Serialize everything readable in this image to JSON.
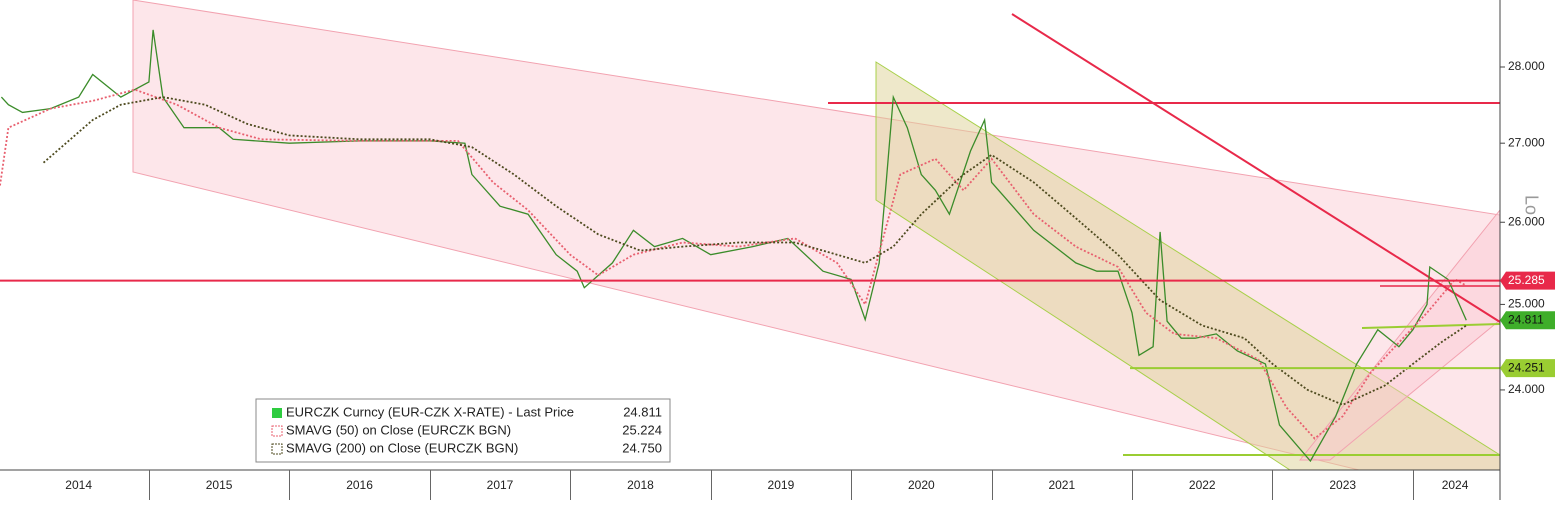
{
  "chart_data": {
    "type": "line",
    "log_scale": true,
    "vertical_label": "Lo",
    "xlim": [
      2013.94,
      2024.62
    ],
    "xticks": [
      {
        "value": 2014.5,
        "label": "2014"
      },
      {
        "value": 2015.5,
        "label": "2015"
      },
      {
        "value": 2016.5,
        "label": "2016"
      },
      {
        "value": 2017.5,
        "label": "2017"
      },
      {
        "value": 2018.5,
        "label": "2018"
      },
      {
        "value": 2019.5,
        "label": "2019"
      },
      {
        "value": 2020.5,
        "label": "2020"
      },
      {
        "value": 2021.5,
        "label": "2021"
      },
      {
        "value": 2022.5,
        "label": "2022"
      },
      {
        "value": 2023.5,
        "label": "2023"
      },
      {
        "value": 2024.3,
        "label": "2024"
      }
    ],
    "ylim": [
      23.1,
      28.91
    ],
    "yticks": [
      {
        "value": 24,
        "label": "24.000"
      },
      {
        "value": 25,
        "label": "25.000"
      },
      {
        "value": 26,
        "label": "26.000"
      },
      {
        "value": 27,
        "label": "27.000"
      },
      {
        "value": 28,
        "label": "28.000"
      }
    ],
    "series": [
      {
        "name": "EURCZK Curncy (EUR-CZK X-RATE) - Last Price",
        "color": "#3b8c2a",
        "style": "solid",
        "last": 24.811,
        "x": [
          2013.95,
          2014.0,
          2014.1,
          2014.3,
          2014.5,
          2014.6,
          2014.8,
          2015.0,
          2015.03,
          2015.1,
          2015.25,
          2015.5,
          2015.6,
          2016.0,
          2016.5,
          2017.0,
          2017.25,
          2017.3,
          2017.5,
          2017.7,
          2017.9,
          2018.05,
          2018.1,
          2018.3,
          2018.45,
          2018.6,
          2018.8,
          2019.0,
          2019.3,
          2019.55,
          2019.8,
          2020.0,
          2020.1,
          2020.2,
          2020.25,
          2020.3,
          2020.4,
          2020.5,
          2020.6,
          2020.7,
          2020.85,
          2020.95,
          2021.0,
          2021.15,
          2021.3,
          2021.45,
          2021.6,
          2021.75,
          2021.9,
          2022.0,
          2022.05,
          2022.15,
          2022.2,
          2022.25,
          2022.35,
          2022.45,
          2022.6,
          2022.75,
          2022.95,
          2023.05,
          2023.27,
          2023.45,
          2023.6,
          2023.75,
          2023.9,
          2024.0,
          2024.1,
          2024.12,
          2024.25,
          2024.33,
          2024.38
        ],
        "values": [
          27.6,
          27.5,
          27.4,
          27.45,
          27.6,
          27.9,
          27.6,
          27.8,
          28.5,
          27.6,
          27.2,
          27.2,
          27.05,
          27.0,
          27.03,
          27.03,
          27.0,
          26.6,
          26.2,
          26.1,
          25.6,
          25.4,
          25.2,
          25.5,
          25.9,
          25.7,
          25.8,
          25.6,
          25.7,
          25.8,
          25.4,
          25.3,
          24.82,
          25.5,
          26.5,
          27.6,
          27.2,
          26.6,
          26.4,
          26.1,
          26.9,
          27.3,
          26.5,
          26.2,
          25.9,
          25.7,
          25.5,
          25.4,
          25.4,
          24.9,
          24.4,
          24.5,
          25.88,
          24.8,
          24.6,
          24.6,
          24.65,
          24.45,
          24.3,
          23.6,
          23.2,
          23.7,
          24.3,
          24.7,
          24.5,
          24.7,
          25.0,
          25.45,
          25.3,
          25.0,
          24.811
        ]
      },
      {
        "name": "SMAVG (50)  on Close (EURCZK BGN)",
        "color": "#e8606f",
        "style": "dotted",
        "last": 25.224,
        "x": [
          2013.94,
          2014.0,
          2014.3,
          2014.6,
          2014.9,
          2015.2,
          2015.5,
          2015.8,
          2016.5,
          2017.2,
          2017.45,
          2017.7,
          2018.0,
          2018.2,
          2018.45,
          2018.8,
          2019.2,
          2019.6,
          2019.9,
          2020.1,
          2020.35,
          2020.6,
          2020.8,
          2021.0,
          2021.3,
          2021.6,
          2021.9,
          2022.1,
          2022.3,
          2022.6,
          2022.9,
          2023.1,
          2023.3,
          2023.5,
          2023.7,
          2023.9,
          2024.1,
          2024.3,
          2024.38
        ],
        "values": [
          26.46,
          27.2,
          27.45,
          27.55,
          27.7,
          27.5,
          27.2,
          27.05,
          27.03,
          27.03,
          26.5,
          26.15,
          25.6,
          25.35,
          25.6,
          25.75,
          25.7,
          25.8,
          25.5,
          25.0,
          26.6,
          26.8,
          26.4,
          26.8,
          26.1,
          25.7,
          25.45,
          24.9,
          24.65,
          24.6,
          24.35,
          23.8,
          23.45,
          23.7,
          24.2,
          24.55,
          24.9,
          25.3,
          25.224
        ]
      },
      {
        "name": "SMAVG (200)  on Close (EURCZK BGN)",
        "color": "#4d4a1e",
        "style": "dotted",
        "last": {
          "value": 24.75,
          "label": "24.750"
        },
        "x": [
          2014.25,
          2014.6,
          2014.8,
          2015.1,
          2015.4,
          2015.7,
          2016.0,
          2016.5,
          2017.0,
          2017.3,
          2017.6,
          2017.9,
          2018.2,
          2018.5,
          2018.8,
          2019.2,
          2019.6,
          2019.9,
          2020.1,
          2020.3,
          2020.5,
          2020.8,
          2021.0,
          2021.3,
          2021.6,
          2021.9,
          2022.2,
          2022.5,
          2022.8,
          2023.0,
          2023.25,
          2023.5,
          2023.8,
          2024.0,
          2024.2,
          2024.38
        ],
        "values": [
          26.75,
          27.3,
          27.5,
          27.6,
          27.5,
          27.25,
          27.1,
          27.05,
          27.05,
          26.95,
          26.6,
          26.2,
          25.85,
          25.65,
          25.7,
          25.75,
          25.75,
          25.6,
          25.5,
          25.7,
          26.1,
          26.6,
          26.85,
          26.5,
          26.05,
          25.6,
          25.05,
          24.75,
          24.6,
          24.3,
          24.0,
          23.83,
          24.05,
          24.3,
          24.55,
          24.75
        ]
      }
    ],
    "levels": [
      {
        "value": 25.285,
        "color": "#e8294a"
      },
      {
        "value": 24.811,
        "color": "#3fae2a"
      },
      {
        "value": 24.251,
        "color": "#9acd32"
      }
    ]
  }
}
